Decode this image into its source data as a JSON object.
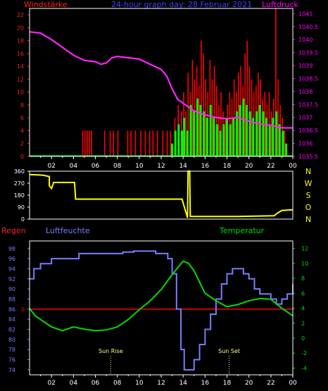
{
  "header": {
    "left_label": "Windstärke",
    "title": "24-hour graph day: 28 Februar 2021",
    "right_label": "Luftdruck"
  },
  "colors": {
    "background": "#000000",
    "frame": "#ffffff",
    "wind_left_axis": "#ff2020",
    "pressure_axis": "#ff00ff",
    "wind_gust": "#ff0000",
    "wind_avg": "#00ff00",
    "pressure_line": "#ff22ff",
    "direction_line": "#ffff00",
    "direction_labels": "#ffff00",
    "humidity": "#7b7bff",
    "temperature": "#00dd00",
    "rain": "#ff0000",
    "sun_labels": "#ffff80"
  },
  "x_ticks": [
    "02",
    "04",
    "06",
    "08",
    "10",
    "12",
    "14",
    "16",
    "18",
    "20",
    "22",
    "00"
  ],
  "chart_data": [
    {
      "type": "bar",
      "name": "wind_pressure",
      "left_axis": {
        "label": "Windstärke",
        "ticks": [
          0,
          2,
          4,
          6,
          8,
          10,
          12,
          14,
          16,
          18,
          20,
          22
        ],
        "ylim": [
          0,
          23
        ]
      },
      "right_axis": {
        "label": "Luftdruck",
        "ticks": [
          1035.5,
          1036,
          1036.5,
          1037,
          1037.5,
          1038,
          1038.5,
          1039,
          1039.5,
          1040,
          1040.5,
          1041
        ],
        "ylim": [
          1035.5,
          1041.2
        ]
      },
      "x_hours": [
        0,
        24
      ],
      "gust_bars": [
        [
          4.8,
          4
        ],
        [
          5.0,
          4
        ],
        [
          5.2,
          4
        ],
        [
          5.4,
          4
        ],
        [
          5.6,
          4
        ],
        [
          6.8,
          4
        ],
        [
          7.3,
          4
        ],
        [
          7.6,
          4
        ],
        [
          8.0,
          4
        ],
        [
          8.9,
          4
        ],
        [
          9.2,
          4
        ],
        [
          9.6,
          4
        ],
        [
          10.1,
          4
        ],
        [
          10.5,
          4
        ],
        [
          10.9,
          4
        ],
        [
          11.2,
          4
        ],
        [
          11.6,
          4
        ],
        [
          12.1,
          4
        ],
        [
          12.5,
          4
        ],
        [
          12.8,
          4
        ],
        [
          13.2,
          6
        ],
        [
          13.5,
          8
        ],
        [
          13.8,
          7
        ],
        [
          14.0,
          10
        ],
        [
          14.2,
          7
        ],
        [
          14.4,
          13
        ],
        [
          14.6,
          10
        ],
        [
          14.8,
          15
        ],
        [
          15.0,
          12
        ],
        [
          15.2,
          14
        ],
        [
          15.4,
          11
        ],
        [
          15.6,
          18
        ],
        [
          15.8,
          16
        ],
        [
          16.0,
          12
        ],
        [
          16.2,
          10
        ],
        [
          16.4,
          15
        ],
        [
          16.6,
          12
        ],
        [
          16.8,
          14
        ],
        [
          17.0,
          11
        ],
        [
          17.2,
          8
        ],
        [
          17.4,
          10
        ],
        [
          17.6,
          7
        ],
        [
          17.8,
          6
        ],
        [
          18.0,
          8
        ],
        [
          18.2,
          10
        ],
        [
          18.4,
          9
        ],
        [
          18.6,
          12
        ],
        [
          18.8,
          10
        ],
        [
          19.0,
          13
        ],
        [
          19.2,
          14
        ],
        [
          19.4,
          11
        ],
        [
          19.6,
          16
        ],
        [
          19.8,
          18
        ],
        [
          20.0,
          14
        ],
        [
          20.2,
          12
        ],
        [
          20.4,
          10
        ],
        [
          20.6,
          11
        ],
        [
          20.8,
          13
        ],
        [
          21.0,
          12
        ],
        [
          21.2,
          9
        ],
        [
          21.4,
          10
        ],
        [
          21.6,
          8
        ],
        [
          21.8,
          10
        ],
        [
          22.0,
          7
        ],
        [
          22.2,
          9
        ],
        [
          22.4,
          23
        ],
        [
          22.6,
          12
        ],
        [
          22.8,
          8
        ],
        [
          23.0,
          6
        ],
        [
          23.2,
          4
        ]
      ],
      "avg_bars": [
        [
          12.9,
          2
        ],
        [
          13.2,
          4
        ],
        [
          13.5,
          5
        ],
        [
          13.8,
          4
        ],
        [
          14.0,
          6
        ],
        [
          14.3,
          4
        ],
        [
          14.6,
          8
        ],
        [
          14.9,
          7
        ],
        [
          15.2,
          9
        ],
        [
          15.5,
          8
        ],
        [
          15.8,
          7
        ],
        [
          16.1,
          6
        ],
        [
          16.4,
          8
        ],
        [
          16.7,
          6
        ],
        [
          17.0,
          5
        ],
        [
          17.3,
          4
        ],
        [
          17.6,
          5
        ],
        [
          17.9,
          6
        ],
        [
          18.2,
          5
        ],
        [
          18.5,
          6
        ],
        [
          18.8,
          7
        ],
        [
          19.1,
          8
        ],
        [
          19.4,
          9
        ],
        [
          19.7,
          8
        ],
        [
          20.0,
          7
        ],
        [
          20.3,
          6
        ],
        [
          20.6,
          7
        ],
        [
          20.9,
          8
        ],
        [
          21.2,
          7
        ],
        [
          21.5,
          6
        ],
        [
          21.8,
          5
        ],
        [
          22.1,
          6
        ],
        [
          22.4,
          7
        ],
        [
          22.7,
          5
        ],
        [
          23.0,
          4
        ],
        [
          23.3,
          2
        ]
      ],
      "pressure": [
        [
          0,
          1040.3
        ],
        [
          1,
          1040.25
        ],
        [
          2,
          1040.0
        ],
        [
          3,
          1039.7
        ],
        [
          4,
          1039.4
        ],
        [
          5,
          1039.2
        ],
        [
          6,
          1039.15
        ],
        [
          6.5,
          1039.05
        ],
        [
          7,
          1039.1
        ],
        [
          7.5,
          1039.3
        ],
        [
          8,
          1039.35
        ],
        [
          9,
          1039.3
        ],
        [
          10,
          1039.25
        ],
        [
          11,
          1039.05
        ],
        [
          12,
          1038.85
        ],
        [
          12.5,
          1038.6
        ],
        [
          13,
          1038.1
        ],
        [
          13.5,
          1037.7
        ],
        [
          14,
          1037.55
        ],
        [
          14.5,
          1037.4
        ],
        [
          15,
          1037.25
        ],
        [
          16,
          1037.1
        ],
        [
          17,
          1037.0
        ],
        [
          18,
          1036.95
        ],
        [
          19,
          1037.0
        ],
        [
          20,
          1036.85
        ],
        [
          21,
          1036.75
        ],
        [
          22,
          1036.7
        ],
        [
          23,
          1036.6
        ],
        [
          24,
          1036.6
        ]
      ]
    },
    {
      "type": "line",
      "name": "wind_direction",
      "left_axis": {
        "ticks": [
          0,
          90,
          180,
          270,
          360
        ],
        "ylim": [
          0,
          360
        ]
      },
      "right_labels": [
        "N",
        "W",
        "S",
        "O",
        "N"
      ],
      "x_hours": [
        0,
        24
      ],
      "points": [
        [
          0,
          335
        ],
        [
          1.2,
          330
        ],
        [
          1.8,
          320
        ],
        [
          1.8,
          250
        ],
        [
          2.0,
          230
        ],
        [
          2.2,
          275
        ],
        [
          4.1,
          275
        ],
        [
          4.2,
          150
        ],
        [
          13.9,
          150
        ],
        [
          14.4,
          10
        ],
        [
          14.45,
          360
        ],
        [
          14.6,
          360
        ],
        [
          14.65,
          20
        ],
        [
          19.0,
          20
        ],
        [
          22.3,
          25
        ],
        [
          22.6,
          45
        ],
        [
          23.0,
          65
        ],
        [
          24,
          70
        ]
      ]
    },
    {
      "type": "line",
      "name": "humidity_temperature",
      "left_label": "Regen",
      "humidity_label": "Luftfeuchte",
      "temperature_label": "Temperatur",
      "humidity_axis": {
        "ticks": [
          74,
          76,
          78,
          80,
          82,
          84,
          86,
          88,
          90,
          92,
          94,
          96,
          98
        ],
        "ylim": [
          73,
          99.5
        ]
      },
      "temperature_axis": {
        "ticks": [
          -4,
          -2,
          0,
          2,
          4,
          6,
          8,
          10,
          12
        ],
        "ylim": [
          -4.9,
          13
        ]
      },
      "rain_marker": "0",
      "x_hours": [
        0,
        24
      ],
      "humidity": [
        [
          0,
          92
        ],
        [
          0.4,
          94
        ],
        [
          1,
          95
        ],
        [
          2,
          96
        ],
        [
          3.5,
          96
        ],
        [
          4.5,
          97
        ],
        [
          5.5,
          97
        ],
        [
          6.5,
          97
        ],
        [
          7.5,
          97
        ],
        [
          8.5,
          97.3
        ],
        [
          9.5,
          97.5
        ],
        [
          10.5,
          97.5
        ],
        [
          11.5,
          97
        ],
        [
          12.3,
          97
        ],
        [
          12.6,
          96
        ],
        [
          13,
          93
        ],
        [
          13.4,
          86
        ],
        [
          13.8,
          78
        ],
        [
          14.1,
          74
        ],
        [
          14.5,
          74
        ],
        [
          15,
          76
        ],
        [
          15.5,
          79
        ],
        [
          16,
          82
        ],
        [
          16.5,
          85
        ],
        [
          17,
          88
        ],
        [
          17.5,
          91
        ],
        [
          18,
          93
        ],
        [
          18.5,
          94
        ],
        [
          19,
          94
        ],
        [
          19.5,
          93
        ],
        [
          20,
          92
        ],
        [
          20.5,
          90
        ],
        [
          21,
          89
        ],
        [
          21.5,
          89
        ],
        [
          22,
          88
        ],
        [
          22.5,
          87
        ],
        [
          23,
          88
        ],
        [
          23.5,
          89
        ],
        [
          24,
          91
        ]
      ],
      "temperature": [
        [
          0,
          4.0
        ],
        [
          0.5,
          3.0
        ],
        [
          1,
          2.5
        ],
        [
          1.5,
          2.0
        ],
        [
          2,
          1.5
        ],
        [
          3,
          1.0
        ],
        [
          4,
          1.5
        ],
        [
          5,
          1.2
        ],
        [
          6,
          1.0
        ],
        [
          7,
          1.1
        ],
        [
          8,
          1.5
        ],
        [
          9,
          2.5
        ],
        [
          10,
          3.8
        ],
        [
          11,
          5.0
        ],
        [
          12,
          6.5
        ],
        [
          13,
          8.5
        ],
        [
          14,
          10.3
        ],
        [
          14.5,
          10.0
        ],
        [
          15,
          9.0
        ],
        [
          15.5,
          7.5
        ],
        [
          16,
          6.0
        ],
        [
          17,
          5.0
        ],
        [
          18,
          4.2
        ],
        [
          19,
          4.5
        ],
        [
          20,
          5.0
        ],
        [
          21,
          5.3
        ],
        [
          22,
          5.2
        ],
        [
          23,
          4.0
        ],
        [
          24,
          3.0
        ]
      ],
      "annotations": [
        {
          "text": "Sun Rise",
          "hour": 7.4
        },
        {
          "text": "Sun Set",
          "hour": 18.2
        }
      ]
    }
  ]
}
